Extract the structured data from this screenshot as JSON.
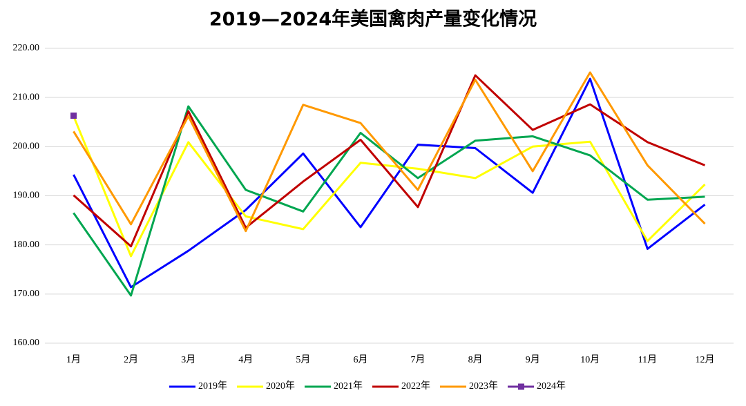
{
  "chart_data": {
    "type": "line",
    "title": "2019—2024年美国禽肉产量变化情况",
    "categories": [
      "1月",
      "2月",
      "3月",
      "4月",
      "5月",
      "6月",
      "7月",
      "8月",
      "9月",
      "10月",
      "11月",
      "12月"
    ],
    "series": [
      {
        "name": "2019年",
        "color": "#0000ff",
        "values": [
          194.3,
          171.4,
          178.8,
          187.1,
          198.6,
          183.6,
          200.4,
          199.7,
          190.6,
          213.8,
          179.2,
          188.2
        ]
      },
      {
        "name": "2020年",
        "color": "#ffff00",
        "values": [
          206.2,
          177.7,
          200.9,
          185.8,
          183.2,
          196.7,
          195.5,
          193.6,
          200.0,
          201.0,
          180.8,
          192.3
        ]
      },
      {
        "name": "2021年",
        "color": "#00a650",
        "values": [
          186.5,
          169.7,
          208.2,
          191.2,
          186.8,
          202.8,
          193.6,
          201.2,
          202.1,
          198.2,
          189.2,
          189.8
        ]
      },
      {
        "name": "2022年",
        "color": "#c00000",
        "values": [
          190.1,
          179.7,
          207.2,
          183.5,
          192.9,
          201.4,
          187.7,
          214.5,
          203.4,
          208.6,
          200.9,
          196.2
        ]
      },
      {
        "name": "2023年",
        "color": "#ff9900",
        "values": [
          203.1,
          184.2,
          206.2,
          182.8,
          208.5,
          204.8,
          191.2,
          213.6,
          195.0,
          215.1,
          196.2,
          184.3
        ]
      },
      {
        "name": "2024年",
        "color": "#7030a0",
        "marker": "square",
        "values": [
          206.3,
          null,
          null,
          null,
          null,
          null,
          null,
          null,
          null,
          null,
          null,
          null
        ]
      }
    ],
    "ylim": [
      160,
      220
    ],
    "yticks": [
      {
        "value": 160,
        "label": "160.00"
      },
      {
        "value": 170,
        "label": "170.00"
      },
      {
        "value": 180,
        "label": "180.00"
      },
      {
        "value": 190,
        "label": "190.00"
      },
      {
        "value": 200,
        "label": "200.00"
      },
      {
        "value": 210,
        "label": "210.00"
      },
      {
        "value": 220,
        "label": "220.00"
      }
    ],
    "grid": true,
    "legend": "bottom"
  }
}
